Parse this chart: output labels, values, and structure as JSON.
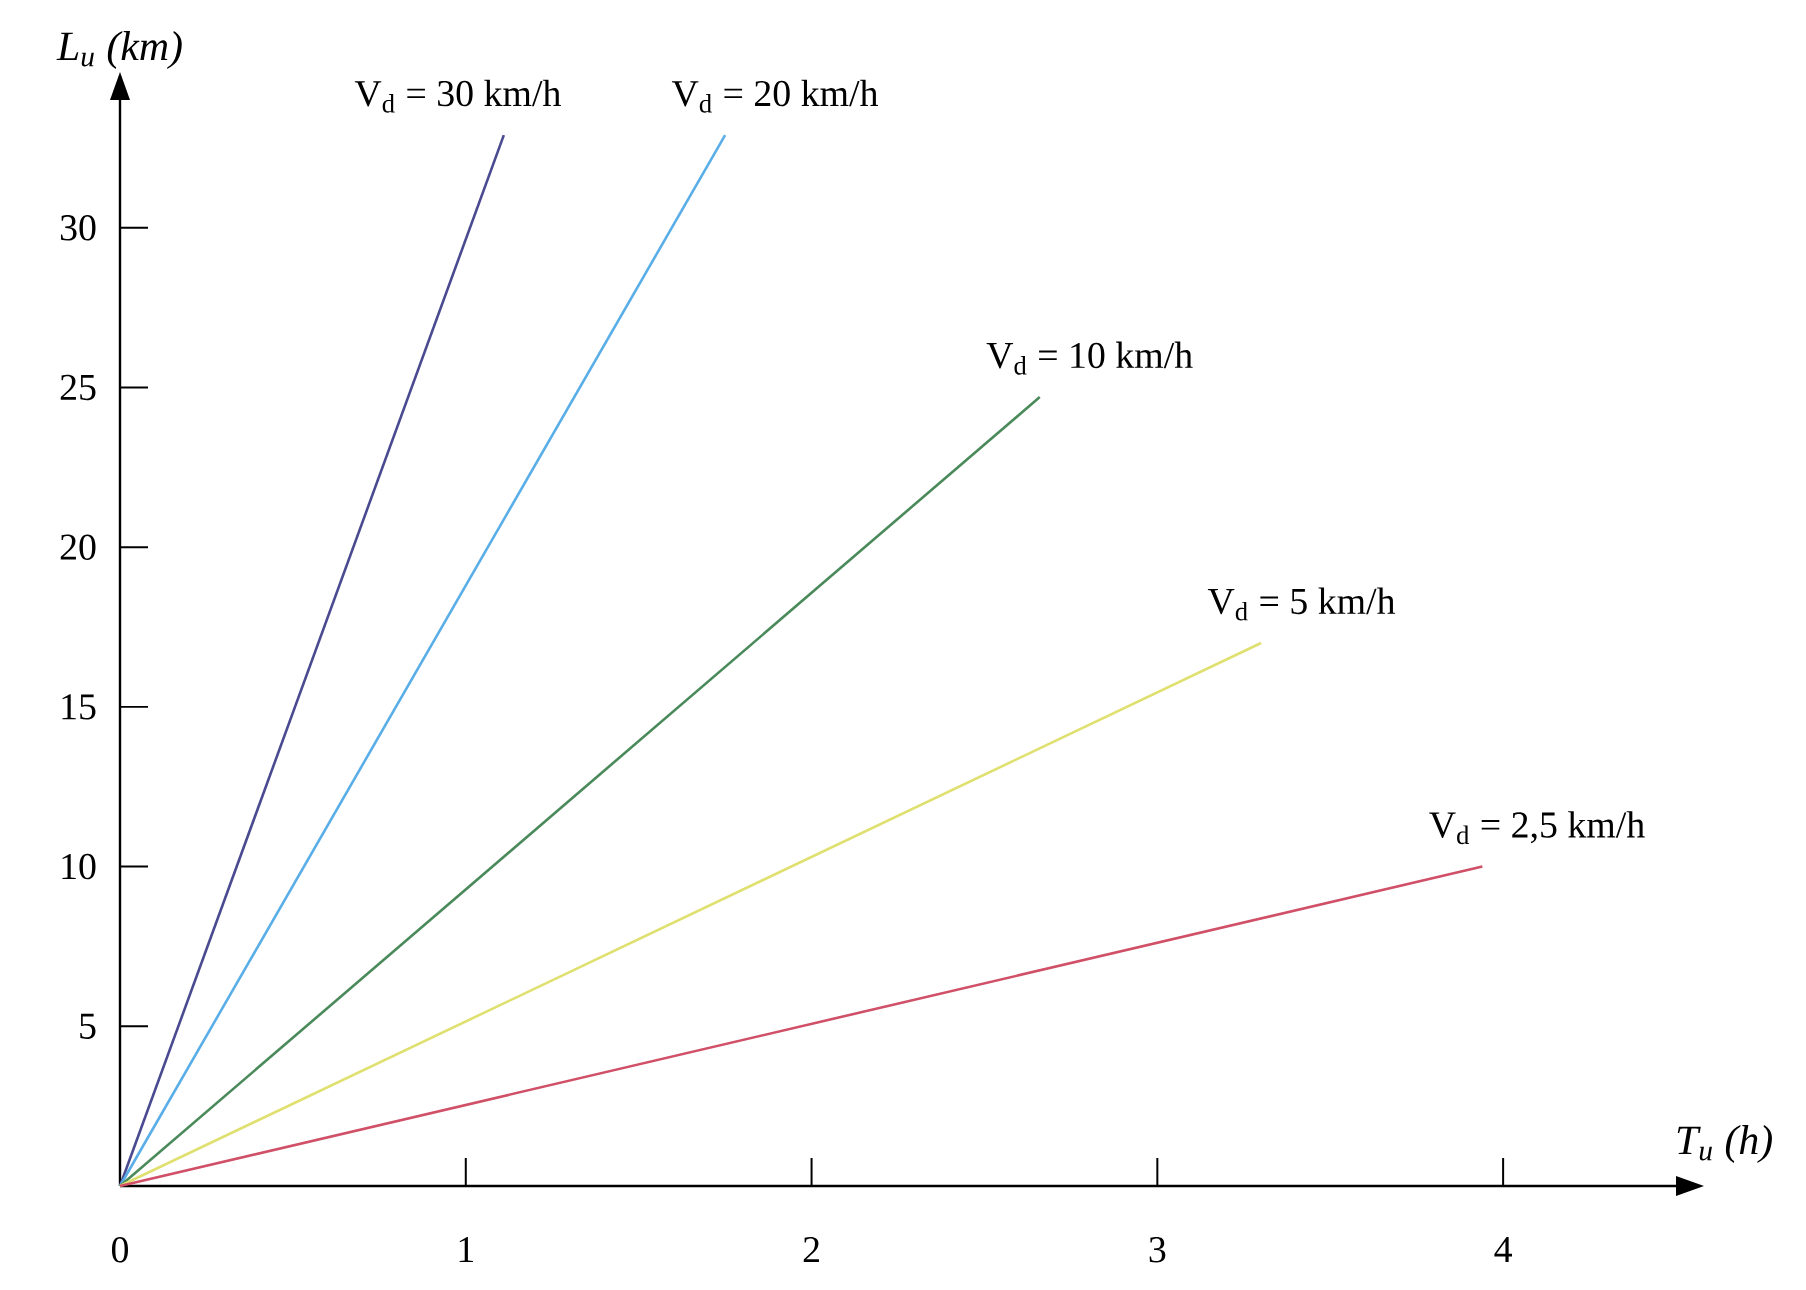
{
  "chart_data": {
    "type": "line",
    "xlabel": "T$_{u}$ (h)",
    "ylabel": "L$_{u}$ (km)",
    "xlim": [
      0,
      4.5
    ],
    "ylim": [
      0,
      34
    ],
    "xticks": [
      0,
      1,
      2,
      3,
      4
    ],
    "yticks": [
      5,
      10,
      15,
      20,
      25,
      30
    ],
    "grid": false,
    "legend": false,
    "marker": "none",
    "line_style": "solid",
    "series": [
      {
        "name": "V$_{d}$ = 30 km/h",
        "color": "#4a4a90",
        "x": [
          0,
          1.11
        ],
        "values": [
          0,
          32.9
        ]
      },
      {
        "name": "V$_{d}$ = 20 km/h",
        "color": "#5aaee8",
        "x": [
          0,
          1.75
        ],
        "values": [
          0,
          32.9
        ]
      },
      {
        "name": "V$_{d}$ = 10 km/h",
        "color": "#4a8a5a",
        "x": [
          0,
          2.66
        ],
        "values": [
          0,
          24.7
        ]
      },
      {
        "name": "V$_{d}$ = 5 km/h",
        "color": "#e0e070",
        "x": [
          0,
          3.3
        ],
        "values": [
          0,
          17.0
        ]
      },
      {
        "name": "V$_{d}$ = 2,5 km/h",
        "color": "#d05068",
        "x": [
          0,
          3.94
        ],
        "values": [
          0,
          10.0
        ]
      }
    ]
  }
}
